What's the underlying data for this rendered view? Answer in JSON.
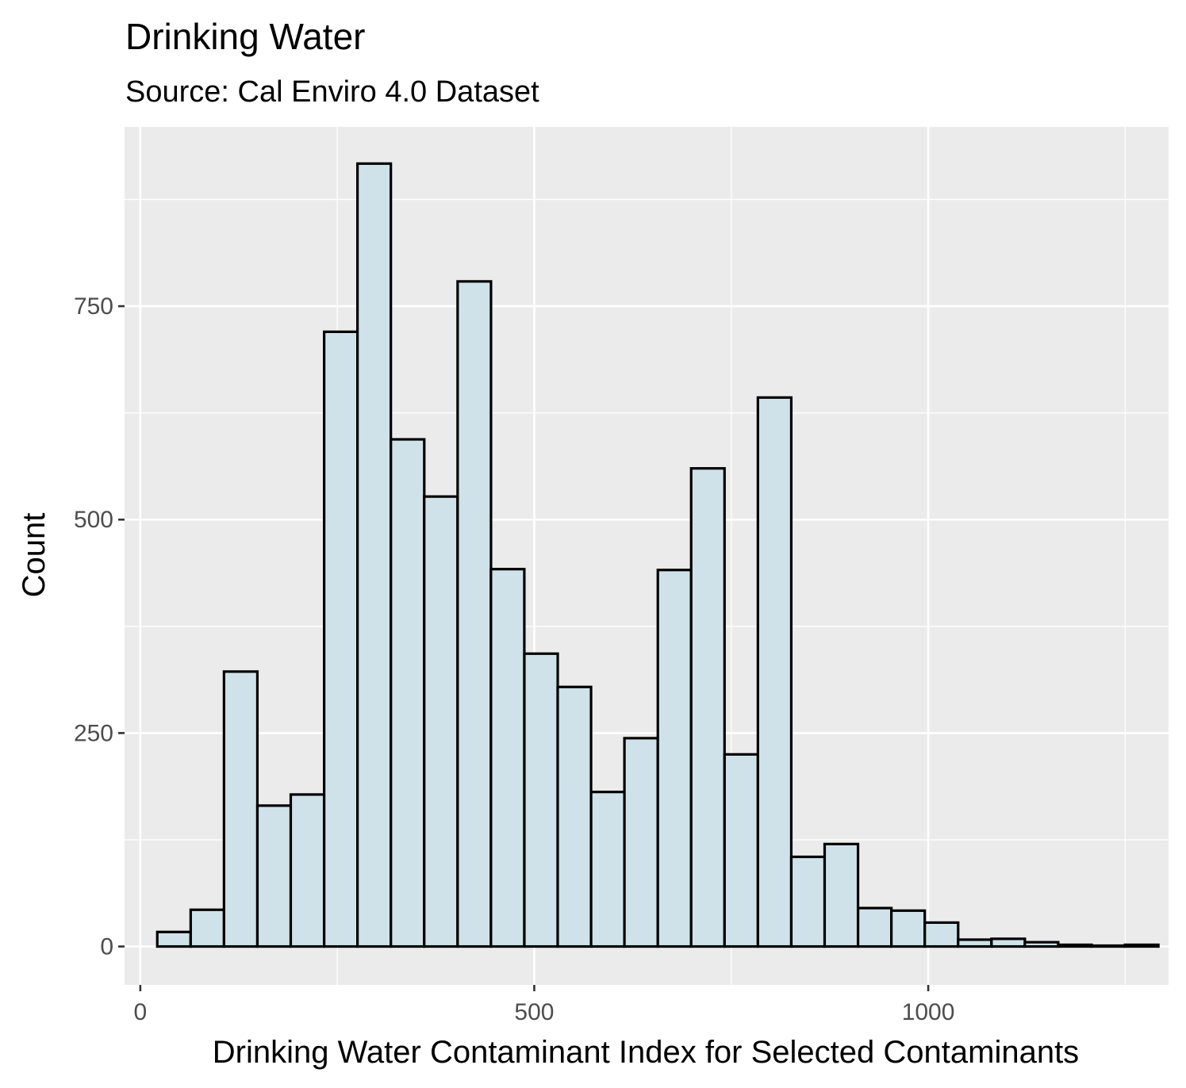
{
  "chart_data": {
    "type": "bar",
    "title": "Drinking Water",
    "subtitle": "Source: Cal Enviro 4.0 Dataset",
    "xlabel": "Drinking Water Contaminant Index for Selected Contaminants",
    "ylabel": "Count",
    "xlim": [
      -20,
      1305
    ],
    "ylim": [
      -45,
      960
    ],
    "x_ticks": [
      0,
      500,
      1000
    ],
    "y_ticks": [
      0,
      250,
      500,
      750
    ],
    "grid": true,
    "bin_width": 42.35,
    "bin_centers": [
      42.7,
      85.1,
      127.4,
      169.8,
      212.1,
      254.5,
      296.8,
      339.2,
      381.5,
      423.9,
      466.2,
      508.6,
      550.9,
      593.3,
      635.6,
      678.0,
      720.3,
      762.7,
      805.0,
      847.4,
      889.7,
      932.1,
      974.4,
      1016.8,
      1059.1,
      1101.5,
      1143.8,
      1186.2,
      1228.5,
      1270.9
    ],
    "values": [
      17,
      43,
      322,
      165,
      178,
      720,
      917,
      594,
      527,
      779,
      442,
      343,
      304,
      181,
      244,
      441,
      560,
      225,
      643,
      105,
      120,
      45,
      42,
      28,
      8,
      9,
      5,
      2,
      1,
      2
    ],
    "bar_fill": "#cfe2e9",
    "bar_stroke": "#000000",
    "panel_background": "#ebebeb",
    "gridline_color": "#ffffff"
  }
}
